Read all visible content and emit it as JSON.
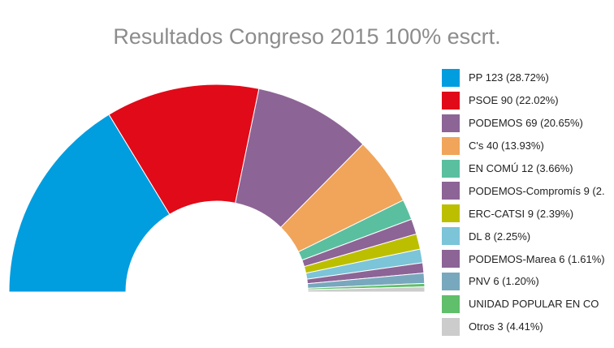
{
  "chart_data": {
    "type": "pie",
    "variant": "semicircle-donut",
    "title": "Resultados Congreso 2015 100% escrt.",
    "legend_position": "right",
    "series": [
      {
        "label": "PP 123 (28.72%)",
        "value": 123,
        "color": "#009ddf"
      },
      {
        "label": "PSOE 90 (22.02%)",
        "value": 90,
        "color": "#e10a18"
      },
      {
        "label": "PODEMOS 69 (20.65%)",
        "value": 69,
        "color": "#8d6496"
      },
      {
        "label": "C's 40 (13.93%)",
        "value": 40,
        "color": "#f0a55a"
      },
      {
        "label": "EN COMÚ 12 (3.66%)",
        "value": 12,
        "color": "#5abf9f"
      },
      {
        "label": "PODEMOS-Compromís 9 (2.",
        "value": 9,
        "color": "#8d6496"
      },
      {
        "label": "ERC-CATSI 9 (2.39%)",
        "value": 9,
        "color": "#bcbf00"
      },
      {
        "label": "DL 8 (2.25%)",
        "value": 8,
        "color": "#7cc4d8"
      },
      {
        "label": "PODEMOS-Marea 6 (1.61%)",
        "value": 6,
        "color": "#8d6496"
      },
      {
        "label": "PNV 6 (1.20%)",
        "value": 6,
        "color": "#78a8bd"
      },
      {
        "label": "UNIDAD POPULAR EN CO",
        "value": 2,
        "color": "#5fbf6a"
      },
      {
        "label": "Otros 3 (4.41%)",
        "value": 3,
        "color": "#cccccc"
      }
    ]
  }
}
